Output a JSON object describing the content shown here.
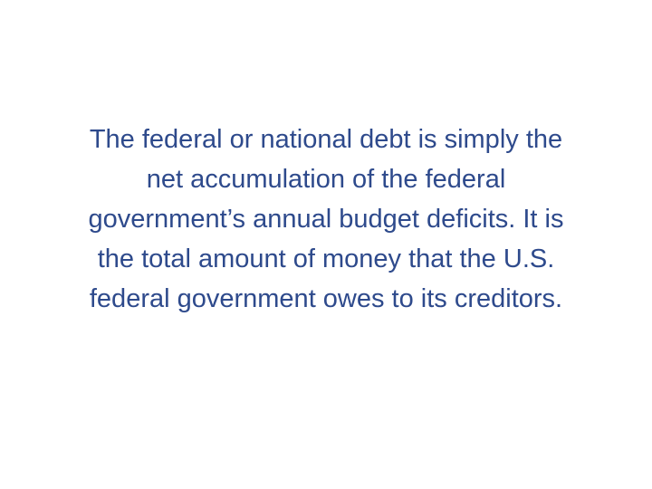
{
  "slide": {
    "lines": [
      "The federal or national debt is simply the",
      "net accumulation of the federal",
      "government’s annual budget deficits. It is",
      "the total amount of money that the U.S.",
      "federal government owes to its creditors."
    ],
    "text_color": "#2e4a8c",
    "background_color": "#ffffff"
  }
}
